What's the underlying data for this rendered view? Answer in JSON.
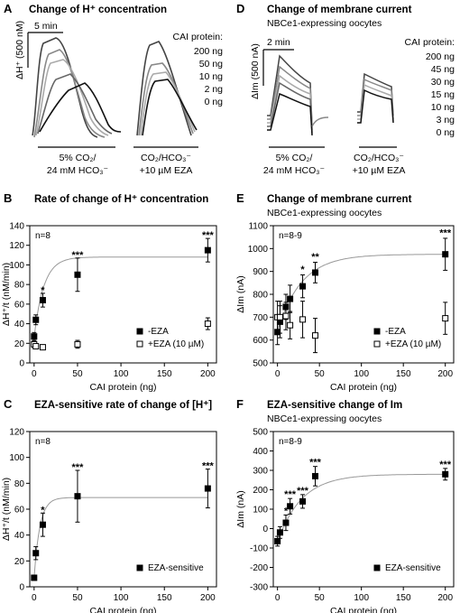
{
  "panels": {
    "A": {
      "letter": "A",
      "title": "Change of H⁺ concentration",
      "time_bar": "5 min",
      "y_scale": "ΔH⁺ (500 nM)",
      "legend_header": "CAI protein:",
      "legend": [
        "200 ng",
        "50 ng",
        "10 ng",
        "2 ng",
        "0 ng"
      ],
      "cond1_line1": "5% CO₂/",
      "cond1_line2": "24 mM HCO₃⁻",
      "cond2_line1": "CO₂/HCO₃⁻",
      "cond2_line2": "+10 µM EZA"
    },
    "D": {
      "letter": "D",
      "title": "Change of membrane current",
      "subtitle": "NBCe1-expressing oocytes",
      "time_bar": "2 min",
      "y_scale": "ΔIm (500 nA)",
      "legend_header": "CAI protein:",
      "legend": [
        "200 ng",
        "45 ng",
        "30 ng",
        "15 ng",
        "10 ng",
        "3 ng",
        "0 ng"
      ],
      "cond1_line1": "5% CO₂/",
      "cond1_line2": "24 mM HCO₃⁻",
      "cond2_line1": "CO₂/HCO₃⁻",
      "cond2_line2": "+10 µM EZA"
    }
  },
  "chart_data": [
    {
      "id": "B",
      "type": "scatter",
      "letter": "B",
      "title": "Rate of change of H⁺ concentration",
      "subtitle": "",
      "n_label": "n=8",
      "xlabel": "CAI protein (ng)",
      "ylabel": "ΔH⁺/t (nM/min)",
      "xlim": [
        -5,
        210
      ],
      "ylim": [
        0,
        140
      ],
      "xticks": [
        0,
        50,
        100,
        150,
        200
      ],
      "yticks": [
        0,
        20,
        40,
        60,
        80,
        100,
        120,
        140
      ],
      "series": [
        {
          "name": "-EZA",
          "marker": "filled",
          "x": [
            0,
            2,
            10,
            50,
            200
          ],
          "y": [
            27,
            44,
            64,
            90,
            115
          ],
          "err": [
            4,
            5,
            7,
            17,
            12
          ]
        },
        {
          "name": "+EZA (10 µM)",
          "marker": "open",
          "x": [
            0,
            2,
            10,
            50,
            200
          ],
          "y": [
            19,
            17,
            16,
            19,
            40
          ],
          "err": [
            3,
            2,
            2,
            4,
            6
          ]
        }
      ],
      "fit": {
        "series": "-EZA",
        "a": 26,
        "b": 82,
        "k": 0.09
      },
      "stars": [
        {
          "x": 10,
          "y": 71,
          "text": "*"
        },
        {
          "x": 50,
          "y": 107,
          "text": "***"
        },
        {
          "x": 200,
          "y": 127,
          "text": "***"
        }
      ],
      "legend_position": "lower-right"
    },
    {
      "id": "C",
      "type": "scatter",
      "letter": "C",
      "title": "EZA-sensitive rate of change of [H⁺]",
      "subtitle": "",
      "n_label": "n=8",
      "xlabel": "CAI protein (ng)",
      "ylabel": "ΔH⁺/t (nM/min)",
      "xlim": [
        -5,
        210
      ],
      "ylim": [
        0,
        120
      ],
      "xticks": [
        0,
        50,
        100,
        150,
        200
      ],
      "yticks": [
        0,
        20,
        40,
        60,
        80,
        100,
        120
      ],
      "series": [
        {
          "name": "EZA-sensitive",
          "marker": "filled",
          "x": [
            0,
            2,
            10,
            50,
            200
          ],
          "y": [
            7,
            26,
            48,
            70,
            76
          ],
          "err": [
            2,
            5,
            9,
            20,
            15
          ]
        }
      ],
      "fit": {
        "series": "EZA-sensitive",
        "a": 7,
        "b": 62,
        "k": 0.15
      },
      "stars": [
        {
          "x": 10,
          "y": 57,
          "text": "*"
        },
        {
          "x": 50,
          "y": 90,
          "text": "***"
        },
        {
          "x": 200,
          "y": 91,
          "text": "***"
        }
      ],
      "legend_position": "lower-right"
    },
    {
      "id": "E",
      "type": "scatter",
      "letter": "E",
      "title": "Change of membrane current",
      "subtitle": "NBCe1-expressing oocytes",
      "n_label": "n=8-9",
      "xlabel": "CAI protein (ng)",
      "ylabel": "ΔIm (nA)",
      "xlim": [
        -5,
        210
      ],
      "ylim": [
        500,
        1100
      ],
      "xticks": [
        0,
        50,
        100,
        150,
        200
      ],
      "yticks": [
        500,
        600,
        700,
        800,
        900,
        1000,
        1100
      ],
      "series": [
        {
          "name": "-EZA",
          "marker": "filled",
          "x": [
            0,
            3,
            10,
            15,
            30,
            45,
            200
          ],
          "y": [
            635,
            680,
            745,
            780,
            835,
            895,
            975
          ],
          "err": [
            55,
            70,
            55,
            60,
            50,
            45,
            70
          ]
        },
        {
          "name": "+EZA (10 µM)",
          "marker": "open",
          "x": [
            0,
            3,
            10,
            15,
            30,
            45,
            200
          ],
          "y": [
            700,
            700,
            705,
            665,
            690,
            620,
            695
          ],
          "err": [
            70,
            70,
            60,
            60,
            80,
            75,
            70
          ]
        }
      ],
      "fit": {
        "series": "-EZA",
        "a": 640,
        "b": 335,
        "k": 0.035
      },
      "stars": [
        {
          "x": 30,
          "y": 895,
          "text": "*"
        },
        {
          "x": 45,
          "y": 950,
          "text": "**"
        },
        {
          "x": 200,
          "y": 1055,
          "text": "***"
        }
      ],
      "legend_position": "lower-right"
    },
    {
      "id": "F",
      "type": "scatter",
      "letter": "F",
      "title": "EZA-sensitive change of Im",
      "subtitle": "NBCe1-expressing oocytes",
      "n_label": "n=8-9",
      "xlabel": "CAI protein (ng)",
      "ylabel": "ΔIm (nA)",
      "xlim": [
        -5,
        210
      ],
      "ylim": [
        -300,
        500
      ],
      "xticks": [
        0,
        50,
        100,
        150,
        200
      ],
      "yticks": [
        -300,
        -200,
        -100,
        0,
        100,
        200,
        300,
        400,
        500
      ],
      "series": [
        {
          "name": "EZA-sensitive",
          "marker": "filled",
          "x": [
            0,
            3,
            10,
            15,
            30,
            45,
            200
          ],
          "y": [
            -65,
            -20,
            30,
            115,
            140,
            270,
            280
          ],
          "err": [
            25,
            30,
            40,
            40,
            35,
            50,
            30
          ]
        }
      ],
      "fit": {
        "series": "EZA-sensitive",
        "a": -70,
        "b": 350,
        "k": 0.035
      },
      "stars": [
        {
          "x": 10,
          "y": 75,
          "text": "*"
        },
        {
          "x": 15,
          "y": 160,
          "text": "***"
        },
        {
          "x": 30,
          "y": 180,
          "text": "***"
        },
        {
          "x": 45,
          "y": 325,
          "text": "***"
        },
        {
          "x": 200,
          "y": 315,
          "text": "***"
        }
      ],
      "legend_position": "lower-right"
    }
  ]
}
